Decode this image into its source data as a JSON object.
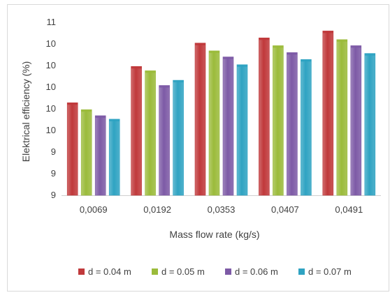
{
  "chart_data": {
    "type": "bar",
    "title": "",
    "xlabel": "Mass flow rate (kg/s)",
    "ylabel": "Elektrical efficiency (%)",
    "categories": [
      "0,0069",
      "0,0192",
      "0,0353",
      "0,0407",
      "0,0491"
    ],
    "ylim": [
      9,
      11
    ],
    "y_ticks": [
      {
        "value": 9.0,
        "label": "9"
      },
      {
        "value": 9.25,
        "label": "9"
      },
      {
        "value": 9.5,
        "label": "9"
      },
      {
        "value": 9.75,
        "label": "10"
      },
      {
        "value": 10.0,
        "label": "10"
      },
      {
        "value": 10.25,
        "label": "10"
      },
      {
        "value": 10.5,
        "label": "10"
      },
      {
        "value": 10.75,
        "label": "10"
      },
      {
        "value": 11.0,
        "label": "11"
      }
    ],
    "series": [
      {
        "name": "d = 0.04 m",
        "color": "#c0393b",
        "values": [
          10.07,
          10.49,
          10.76,
          10.82,
          10.9
        ]
      },
      {
        "name": "d = 0.05 m",
        "color": "#9bbb3b",
        "values": [
          9.99,
          10.44,
          10.67,
          10.73,
          10.8
        ]
      },
      {
        "name": "d = 0.06 m",
        "color": "#7d5aa6",
        "values": [
          9.92,
          10.27,
          10.6,
          10.65,
          10.73
        ]
      },
      {
        "name": "d = 0.07 m",
        "color": "#2fa3c2",
        "values": [
          9.88,
          10.33,
          10.51,
          10.57,
          10.64
        ]
      }
    ],
    "grid": false,
    "legend_position": "bottom"
  }
}
